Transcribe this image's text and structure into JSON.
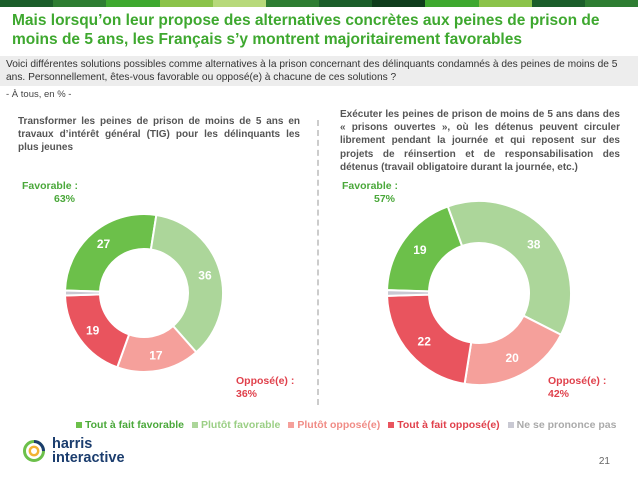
{
  "header": {
    "bar_colors": [
      "#1b5e2a",
      "#2e7d32",
      "#3ea82f",
      "#8bc34a",
      "#b7d97a",
      "#2e7d32",
      "#1b5e2a",
      "#0f3d1c",
      "#3ea82f",
      "#8bc34a",
      "#1b5e2a",
      "#2e7d32"
    ],
    "title": "Mais lorsqu’on leur propose des alternatives concrètes aux peines de prison de moins de 5 ans, les Français s’y montrent majoritairement favorables"
  },
  "question": {
    "text": "Voici différentes solutions possibles comme alternatives à la prison concernant des délinquants condamnés à des peines de moins de 5 ans. Personnellement, êtes-vous favorable ou opposé(e) à chacune de ces solutions ?",
    "base": "- À tous, en % -"
  },
  "chart_data": [
    {
      "type": "pie",
      "donut": true,
      "title": "Transformer les peines de prison de moins de 5 ans en travaux d’intérêt général (TIG) pour les délinquants les plus jeunes",
      "categories": [
        "Tout à fait favorable",
        "Plutôt favorable",
        "Plutôt opposé(e)",
        "Tout à fait opposé(e)",
        "Ne se prononce pas"
      ],
      "values": [
        27,
        36,
        17,
        19,
        1
      ],
      "labels": [
        "27",
        "36",
        "17",
        "19",
        ""
      ],
      "favorable_label": "Favorable :",
      "favorable_value": "63%",
      "oppose_label": "Opposé(e) :",
      "oppose_value": "36%"
    },
    {
      "type": "pie",
      "donut": true,
      "title": "Exécuter les peines de prison de moins de 5 ans dans des « prisons ouvertes », où les détenus peuvent circuler librement pendant la journée et qui reposent sur des projets de réinsertion et de responsabilisation des détenus (travail obligatoire durant la journée, etc.)",
      "categories": [
        "Tout à fait favorable",
        "Plutôt favorable",
        "Plutôt opposé(e)",
        "Tout à fait opposé(e)",
        "Ne se prononce pas"
      ],
      "values": [
        19,
        38,
        20,
        22,
        1
      ],
      "labels": [
        "19",
        "38",
        "20",
        "22",
        ""
      ],
      "favorable_label": "Favorable :",
      "favorable_value": "57%",
      "oppose_label": "Opposé(e) :",
      "oppose_value": "42%"
    }
  ],
  "series_colors": [
    "#6cc04a",
    "#acd69a",
    "#f5a09b",
    "#e9545e",
    "#c9c9d3"
  ],
  "legend": [
    {
      "label": "Tout à fait favorable",
      "color": "#6cc04a",
      "text_color": "#4aa83a"
    },
    {
      "label": "Plutôt favorable",
      "color": "#acd69a",
      "text_color": "#9bcf85"
    },
    {
      "label": "Plutôt opposé(e)",
      "color": "#f5a09b",
      "text_color": "#f08c86"
    },
    {
      "label": "Tout à fait opposé(e)",
      "color": "#e9545e",
      "text_color": "#e0414c"
    },
    {
      "label": "Ne se prononce pas",
      "color": "#c9c9d3",
      "text_color": "#aaaaaa"
    }
  ],
  "footer": {
    "logo_line1": "harris",
    "logo_line2": "interactive",
    "page": "21"
  }
}
